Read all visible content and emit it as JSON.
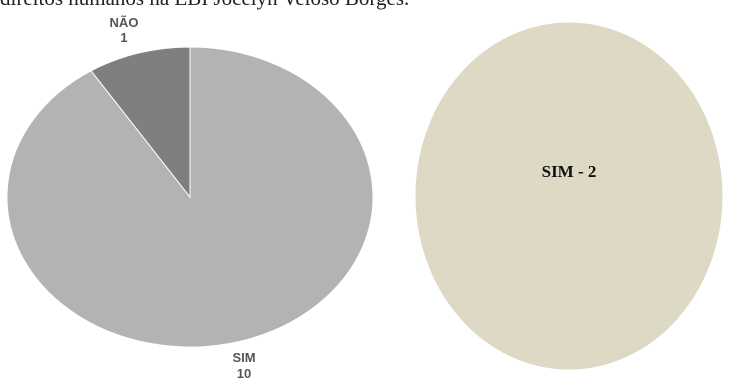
{
  "page": {
    "caption": "direitos humanos na EBI Jocelyn Veloso Borges."
  },
  "chart_data": [
    {
      "type": "pie",
      "categories": [
        "SIM",
        "NÃO"
      ],
      "values": [
        10,
        1
      ],
      "labels": [
        {
          "name": "SIM",
          "value": "10"
        },
        {
          "name": "NÃO",
          "value": "1"
        }
      ],
      "colors": [
        "#b3b3b3",
        "#7f7f7f"
      ]
    },
    {
      "type": "pie",
      "categories": [
        "SIM"
      ],
      "values": [
        2
      ],
      "labels": [
        {
          "text": "SIM - 2"
        }
      ],
      "colors": [
        "#ddd9c4"
      ]
    }
  ]
}
